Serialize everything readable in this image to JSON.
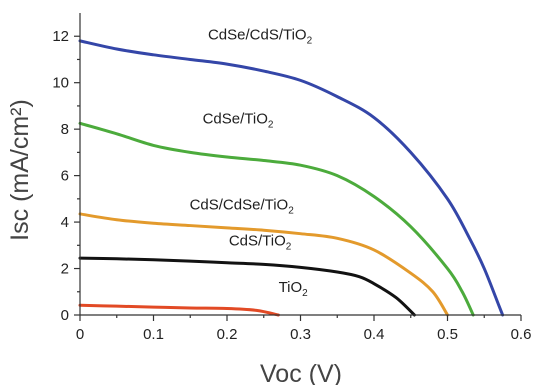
{
  "chart_data": {
    "type": "line",
    "title": "",
    "xlabel": "Voc (V)",
    "ylabel": "Isc (mA/cm²)",
    "xlim": [
      0,
      0.6
    ],
    "ylim": [
      0,
      13
    ],
    "x_ticks": [
      "0",
      "0.1",
      "0.2",
      "0.3",
      "0.4",
      "0.5",
      "0.6"
    ],
    "y_ticks": [
      "0",
      "2",
      "4",
      "6",
      "8",
      "10",
      "12"
    ],
    "grid": false,
    "legend": "none",
    "series": [
      {
        "label_main": "CdSe/CdS/TiO",
        "label_sub": "2",
        "color": "#3446a8",
        "points": [
          [
            0.0,
            11.8
          ],
          [
            0.05,
            11.45
          ],
          [
            0.1,
            11.2
          ],
          [
            0.15,
            11.0
          ],
          [
            0.2,
            10.8
          ],
          [
            0.25,
            10.5
          ],
          [
            0.3,
            10.1
          ],
          [
            0.35,
            9.4
          ],
          [
            0.4,
            8.5
          ],
          [
            0.45,
            7.0
          ],
          [
            0.5,
            5.0
          ],
          [
            0.53,
            3.3
          ],
          [
            0.55,
            2.0
          ],
          [
            0.57,
            0.4
          ],
          [
            0.575,
            0.0
          ]
        ],
        "label_x": 0.245,
        "label_y": 11.85
      },
      {
        "label_main": "CdSe/TiO",
        "label_sub": "2",
        "color": "#4cab3c",
        "points": [
          [
            0.0,
            8.25
          ],
          [
            0.05,
            7.8
          ],
          [
            0.1,
            7.3
          ],
          [
            0.15,
            7.0
          ],
          [
            0.2,
            6.8
          ],
          [
            0.25,
            6.65
          ],
          [
            0.3,
            6.45
          ],
          [
            0.35,
            6.0
          ],
          [
            0.4,
            5.1
          ],
          [
            0.45,
            3.8
          ],
          [
            0.5,
            2.0
          ],
          [
            0.52,
            1.0
          ],
          [
            0.535,
            0.0
          ]
        ],
        "label_x": 0.215,
        "label_y": 8.25
      },
      {
        "label_main": "CdS/CdSe/TiO",
        "label_sub": "2",
        "color": "#e39a2c",
        "points": [
          [
            0.0,
            4.35
          ],
          [
            0.05,
            4.1
          ],
          [
            0.1,
            3.95
          ],
          [
            0.15,
            3.85
          ],
          [
            0.2,
            3.75
          ],
          [
            0.25,
            3.65
          ],
          [
            0.3,
            3.5
          ],
          [
            0.35,
            3.3
          ],
          [
            0.4,
            2.8
          ],
          [
            0.45,
            1.8
          ],
          [
            0.48,
            1.0
          ],
          [
            0.5,
            0.0
          ]
        ],
        "label_x": 0.22,
        "label_y": 4.55
      },
      {
        "label_main": "CdS/TiO",
        "label_sub": "2",
        "color": "#121212",
        "points": [
          [
            0.0,
            2.45
          ],
          [
            0.05,
            2.42
          ],
          [
            0.1,
            2.38
          ],
          [
            0.15,
            2.32
          ],
          [
            0.2,
            2.25
          ],
          [
            0.25,
            2.18
          ],
          [
            0.3,
            2.05
          ],
          [
            0.35,
            1.85
          ],
          [
            0.38,
            1.65
          ],
          [
            0.4,
            1.35
          ],
          [
            0.43,
            0.75
          ],
          [
            0.455,
            0.0
          ]
        ],
        "label_x": 0.245,
        "label_y": 3.0
      },
      {
        "label_main": "TiO",
        "label_sub": "2",
        "color": "#e24a25",
        "points": [
          [
            0.0,
            0.42
          ],
          [
            0.05,
            0.38
          ],
          [
            0.1,
            0.34
          ],
          [
            0.15,
            0.3
          ],
          [
            0.2,
            0.28
          ],
          [
            0.24,
            0.2
          ],
          [
            0.27,
            0.0
          ]
        ],
        "label_x": 0.29,
        "label_y": 1.0
      }
    ]
  }
}
